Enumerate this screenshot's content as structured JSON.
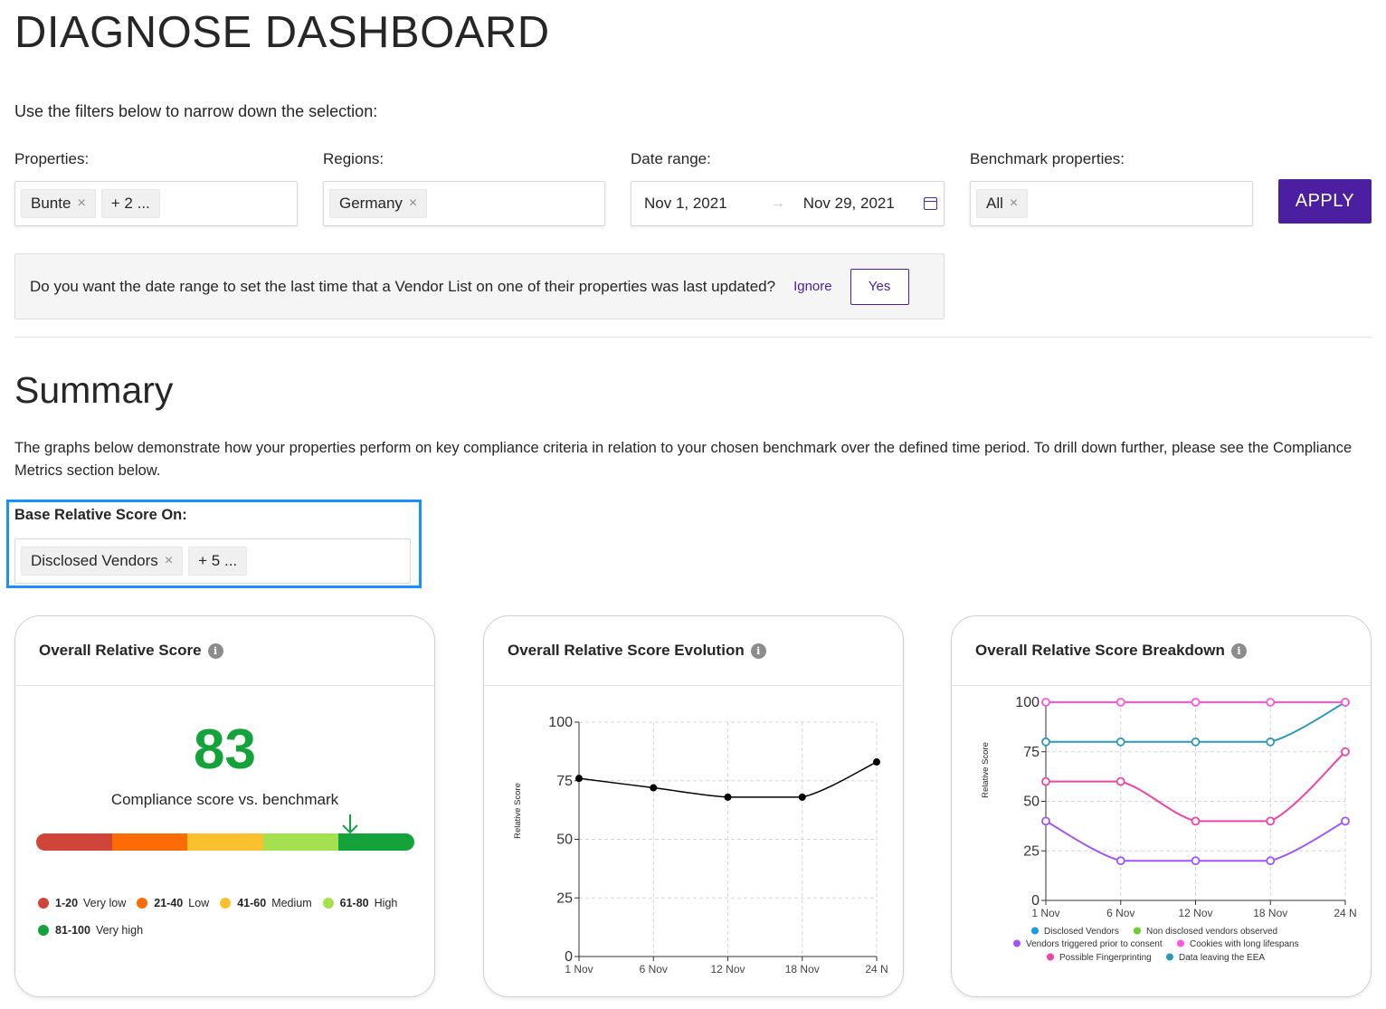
{
  "header": {
    "title": "DIAGNOSE DASHBOARD"
  },
  "filters": {
    "intro": "Use the filters below to narrow down the selection:",
    "properties": {
      "label": "Properties:",
      "tags": [
        "Bunte",
        "+ 2 ..."
      ]
    },
    "regions": {
      "label": "Regions:",
      "tags": [
        "Germany"
      ]
    },
    "date_range": {
      "label": "Date range:",
      "start": "Nov 1, 2021",
      "end": "Nov 29, 2021"
    },
    "benchmark": {
      "label": "Benchmark properties:",
      "tags": [
        "All"
      ]
    },
    "apply_label": "APPLY",
    "remove_glyph": "×",
    "arrow_glyph": "→"
  },
  "notice": {
    "message": "Do you want the date range to set the last time that a Vendor List on one of their properties was last updated?",
    "ignore_label": "Ignore",
    "yes_label": "Yes"
  },
  "summary": {
    "title": "Summary",
    "description": "The graphs below demonstrate how your properties perform on key compliance criteria in relation to your chosen benchmark over the defined time period. To drill down further, please see the Compliance Metrics section below.",
    "base_label": "Base Relative Score On:",
    "base_tags": [
      "Disclosed Vendors",
      "+ 5 ..."
    ]
  },
  "cards": {
    "info_glyph": "i",
    "overall": {
      "title": "Overall Relative Score",
      "score": "83",
      "score_value": 83,
      "caption": "Compliance score vs. benchmark",
      "bands": [
        {
          "range": "1-20",
          "label": "Very low",
          "color": "#d0453a"
        },
        {
          "range": "21-40",
          "label": "Low",
          "color": "#fb6b06"
        },
        {
          "range": "41-60",
          "label": "Medium",
          "color": "#fbc02d"
        },
        {
          "range": "61-80",
          "label": "High",
          "color": "#a3e14f"
        },
        {
          "range": "81-100",
          "label": "Very high",
          "color": "#14a33a"
        }
      ]
    },
    "evolution": {
      "title": "Overall Relative Score Evolution"
    },
    "breakdown": {
      "title": "Overall Relative Score Breakdown"
    }
  },
  "chart_data": [
    {
      "type": "line",
      "title": "Overall Relative Score Evolution",
      "xlabel": "",
      "ylabel": "Relative Score",
      "categories": [
        "1 Nov",
        "6 Nov",
        "12 Nov",
        "18 Nov",
        "24 N"
      ],
      "yticks": [
        0,
        25,
        50,
        75,
        100
      ],
      "ylim": [
        0,
        100
      ],
      "grid": true,
      "series": [
        {
          "name": "Overall Relative Score",
          "color": "#000000",
          "values": [
            76,
            72,
            68,
            68,
            83
          ]
        }
      ]
    },
    {
      "type": "line",
      "title": "Overall Relative Score Breakdown",
      "xlabel": "",
      "ylabel": "Relative Score",
      "categories": [
        "1 Nov",
        "6 Nov",
        "12 Nov",
        "18 Nov",
        "24 N"
      ],
      "yticks": [
        0,
        25,
        50,
        75,
        100
      ],
      "ylim": [
        0,
        100
      ],
      "grid": true,
      "legend_position": "bottom",
      "series": [
        {
          "name": "Possible Fingerprinting",
          "color": "#ee44aa",
          "values": [
            60,
            60,
            40,
            40,
            75
          ]
        },
        {
          "name": "Vendors triggered prior to consent",
          "color": "#a055f5",
          "values": [
            40,
            20,
            20,
            20,
            40
          ]
        },
        {
          "name": "Data leaving the EEA",
          "color": "#2b9ab8",
          "values": [
            80,
            80,
            80,
            80,
            100
          ]
        },
        {
          "name": "Cookies with long lifespans",
          "color": "#ff55dd",
          "values": [
            100,
            100,
            100,
            100,
            100
          ]
        }
      ],
      "legend": [
        {
          "name": "Disclosed Vendors",
          "color": "#1a9be8"
        },
        {
          "name": "Non disclosed vendors observed",
          "color": "#6ccc2c"
        },
        {
          "name": "Vendors triggered prior to consent",
          "color": "#a055f5"
        },
        {
          "name": "Cookies with long lifespans",
          "color": "#ff55dd"
        },
        {
          "name": "Possible Fingerprinting",
          "color": "#ee44aa"
        },
        {
          "name": "Data leaving the EEA",
          "color": "#2b9ab8"
        }
      ]
    }
  ]
}
